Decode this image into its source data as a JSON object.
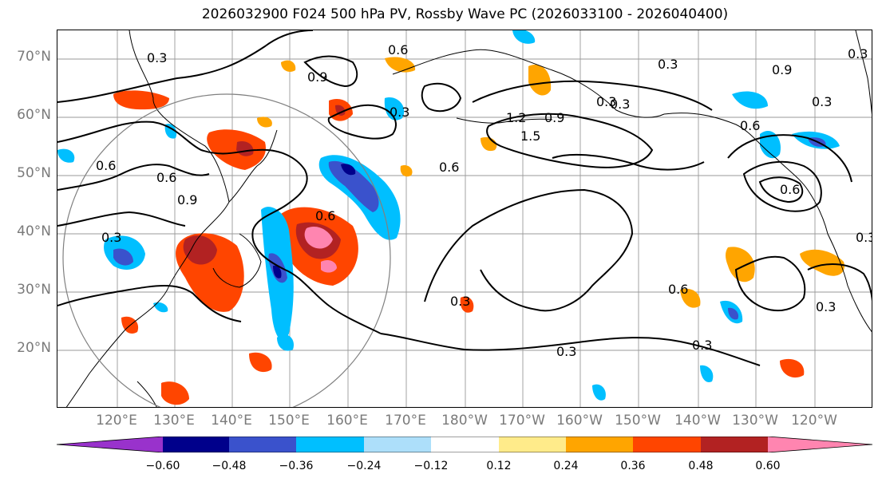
{
  "title": "2026032900 F024 500 hPa PV, Rossby Wave PC (2026033100 - 2026040400)",
  "lat_labels": [
    "70°N",
    "60°N",
    "50°N",
    "40°N",
    "30°N",
    "20°N"
  ],
  "lon_labels": [
    "120°E",
    "130°E",
    "140°E",
    "150°E",
    "160°E",
    "170°E",
    "180°W",
    "170°W",
    "160°W",
    "150°W",
    "140°W",
    "130°W",
    "120°W"
  ],
  "contour_labels": [
    "0.3",
    "0.6",
    "0.9",
    "0.3",
    "0.6",
    "0.9",
    "1.2",
    "1.5",
    "0.6",
    "0.3",
    "0.6",
    "0.9",
    "0.3",
    "0.6",
    "0.3",
    "0.3",
    "0.6",
    "0.3",
    "0.3",
    "0.6",
    "0.3",
    "0.9",
    "0.6",
    "0.3",
    "0.3",
    "0.3",
    "0.3"
  ],
  "colorbar": {
    "ticks": [
      "−0.60",
      "−0.48",
      "−0.36",
      "−0.24",
      "−0.12",
      "0.12",
      "0.24",
      "0.36",
      "0.48",
      "0.60"
    ],
    "colors": [
      "#9932CC",
      "#00008B",
      "#3A52CC",
      "#00BFFF",
      "#ADDFFA",
      "#FFFFFF",
      "#FFEB8A",
      "#FFA500",
      "#FF4500",
      "#B22222",
      "#FF85B0"
    ]
  }
}
